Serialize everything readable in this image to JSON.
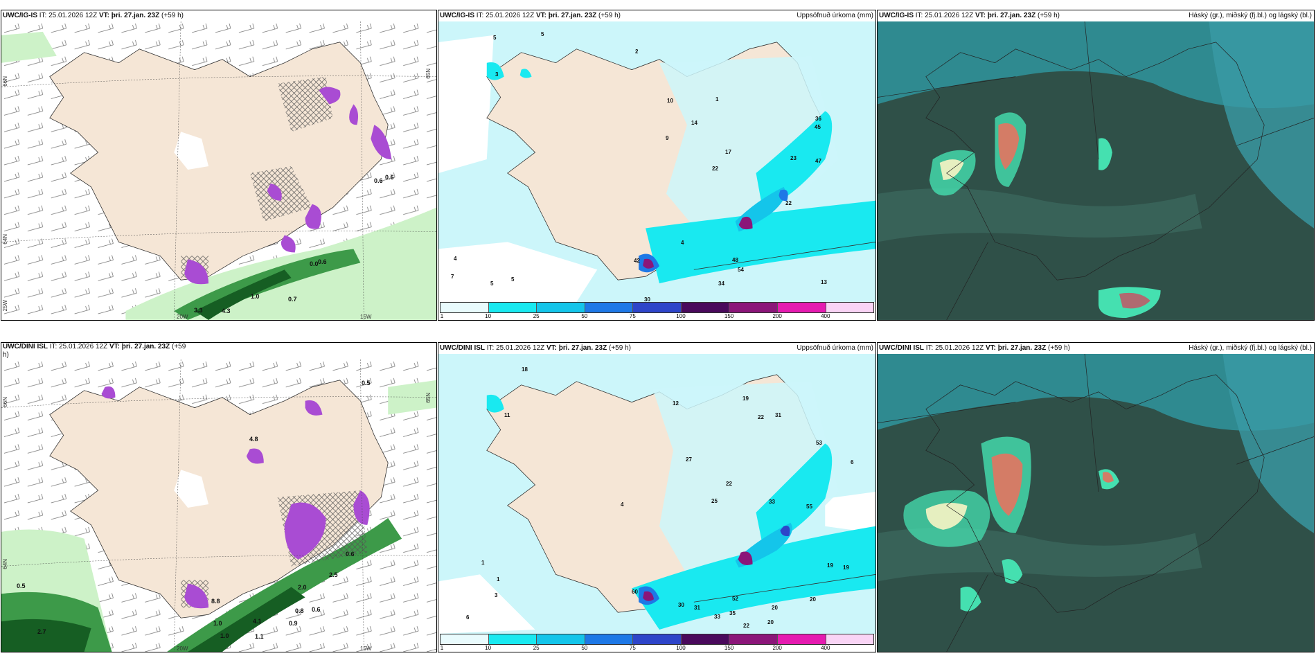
{
  "panels": {
    "p1": {
      "model": "UWC/IG-IS",
      "it": " IT: 25.01.2026 12Z ",
      "vt": "VT: þri. 27.jan. 23Z",
      "lead": " (+59 h)",
      "right": ""
    },
    "p2": {
      "model": "UWC/IG-IS",
      "it": " IT: 25.01.2026 12Z ",
      "vt": "VT: þri. 27.jan. 23Z",
      "lead": " (+59 h)",
      "right": "Uppsöfnuð úrkoma (mm)"
    },
    "p3": {
      "model": "UWC/IG-IS",
      "it": " IT: 25.01.2026 12Z ",
      "vt": "VT: þri. 27.jan. 23Z",
      "lead": " (+59 h)",
      "right": "Háský (gr.), miðský (fj.bl.) og lágský (bl.)"
    },
    "p4": {
      "model": "UWC/DINI ISL",
      "it": " IT: 25.01.2026 12Z ",
      "vt": "VT: þri. 27.jan. 23Z",
      "lead": " (+59",
      "right": ""
    },
    "p5": {
      "model": "UWC/DINI ISL",
      "it": " IT: 25.01.2026 12Z ",
      "vt": "VT: þri. 27.jan. 23Z",
      "lead": " (+59 h)",
      "right": "Uppsöfnuð úrkoma (mm)"
    },
    "p6": {
      "model": "UWC/DINI ISL",
      "it": " IT: 25.01.2026 12Z ",
      "vt": "VT: þri. 27.jan. 23Z",
      "lead": " (+59 h)",
      "right": "Háský (gr.), miðský (fj.bl.) og lágský (bl.)"
    }
  },
  "p4_wrap": "h)",
  "axis": {
    "lat_n66": "66N",
    "lat_n64": "64N",
    "lat_n65": "65N",
    "lon_20w": "20W",
    "lon_15w": "15W",
    "lon_25w": "25W"
  },
  "legend": {
    "labels": [
      "1",
      "10",
      "25",
      "50",
      "75",
      "100",
      "150",
      "200",
      "400"
    ],
    "colors": [
      "#e9fbfd",
      "#19e9f0",
      "#14c5ea",
      "#1e78e6",
      "#2e45c9",
      "#4a0a5c",
      "#8b1679",
      "#e51bb0",
      "#f3a7ea",
      "#f9d4f5"
    ]
  },
  "colors": {
    "land": "#f5e6d6",
    "precip_light": "#ccf6fa",
    "precip_mid": "#3fe3f0",
    "snow": "#a94cd3",
    "green_light": "#cdf2c8",
    "green_dark": "#165e23",
    "cloud_dark": "#2f5048",
    "cloud_teal": "#2f8a90"
  },
  "labels_p1": [
    "0.6",
    "0.6",
    "0.6",
    "0.0",
    "0.7",
    "1.0",
    "3.3",
    "4.3",
    "1.0"
  ],
  "labels_p2": [
    "5",
    "5",
    "2",
    "10",
    "9",
    "14",
    "17",
    "22",
    "23",
    "22",
    "36",
    "45",
    "47",
    "48",
    "54",
    "34",
    "13",
    "42",
    "30",
    "4",
    "7",
    "5",
    "5",
    "4",
    "1",
    "3"
  ],
  "labels_p4": [
    "0.5",
    "0.5",
    "2.7",
    "2.0",
    "1.0",
    "0.8",
    "0.6",
    "0.9",
    "4.1",
    "1.0",
    "8.8",
    "0.6",
    "2.5",
    "1.1",
    "4.8"
  ],
  "labels_p5": [
    "18",
    "11",
    "12",
    "19",
    "22",
    "31",
    "53",
    "55",
    "27",
    "22",
    "25",
    "33",
    "52",
    "35",
    "30",
    "31",
    "33",
    "22",
    "20",
    "20",
    "20",
    "19",
    "19",
    "60",
    "6",
    "1",
    "1",
    "3",
    "4",
    "6"
  ]
}
